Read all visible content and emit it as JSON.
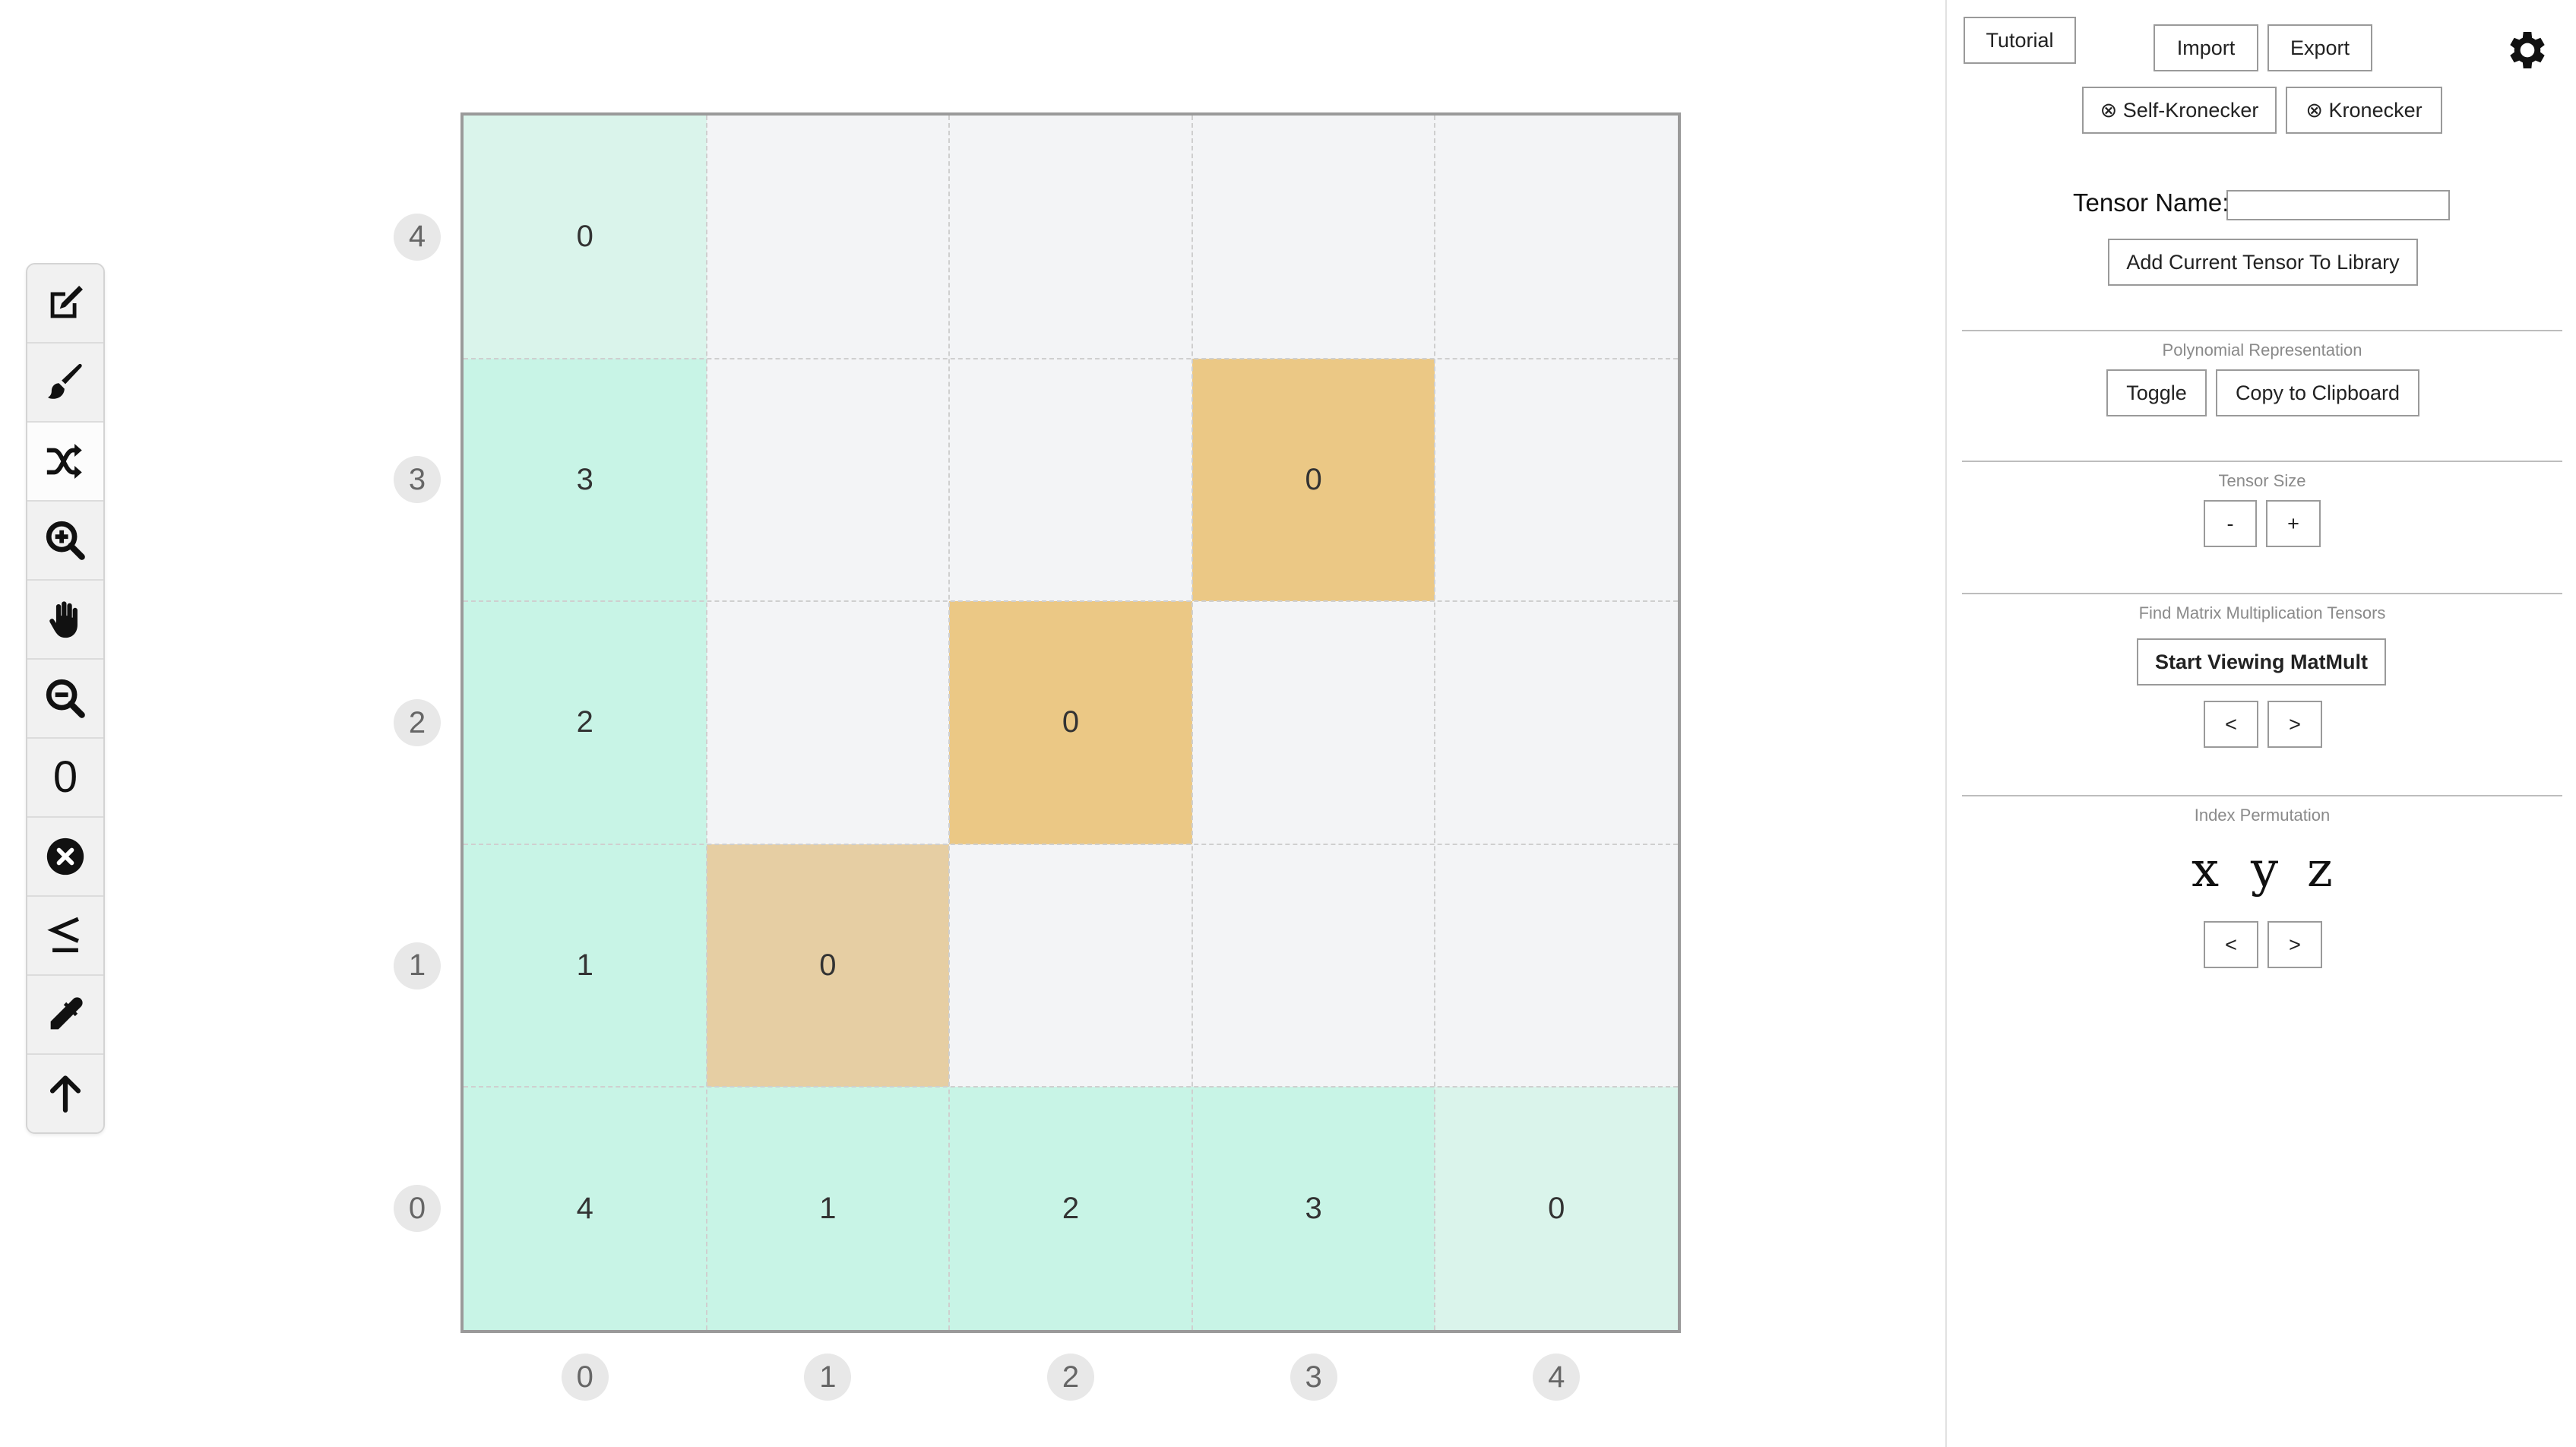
{
  "toolbar": {
    "tools": [
      {
        "name": "edit-icon",
        "active": false
      },
      {
        "name": "brush-icon",
        "active": false
      },
      {
        "name": "shuffle-icon",
        "active": true
      },
      {
        "name": "zoom-in-icon",
        "active": false
      },
      {
        "name": "hand-icon",
        "active": false
      },
      {
        "name": "zoom-out-icon",
        "active": false
      },
      {
        "name": "zero-icon",
        "label": "0",
        "active": false
      },
      {
        "name": "clear-icon",
        "active": false
      },
      {
        "name": "less-equal-icon",
        "label": "≤",
        "active": false
      },
      {
        "name": "eyedropper-icon",
        "active": false
      },
      {
        "name": "arrow-up-icon",
        "active": false
      }
    ]
  },
  "grid": {
    "size": 5,
    "row_axis": [
      "4",
      "3",
      "2",
      "1",
      "0"
    ],
    "col_axis": [
      "0",
      "1",
      "2",
      "3",
      "4"
    ],
    "cells": [
      [
        {
          "v": "0",
          "t": "corner"
        },
        {
          "v": "",
          "t": "empty"
        },
        {
          "v": "",
          "t": "empty"
        },
        {
          "v": "",
          "t": "empty"
        },
        {
          "v": "",
          "t": "empty"
        }
      ],
      [
        {
          "v": "3",
          "t": "label"
        },
        {
          "v": "",
          "t": "empty"
        },
        {
          "v": "",
          "t": "empty"
        },
        {
          "v": "0",
          "t": "gold"
        },
        {
          "v": "",
          "t": "empty"
        }
      ],
      [
        {
          "v": "2",
          "t": "label"
        },
        {
          "v": "",
          "t": "empty"
        },
        {
          "v": "0",
          "t": "gold"
        },
        {
          "v": "",
          "t": "empty"
        },
        {
          "v": "",
          "t": "empty"
        }
      ],
      [
        {
          "v": "1",
          "t": "label"
        },
        {
          "v": "0",
          "t": "tan"
        },
        {
          "v": "",
          "t": "empty"
        },
        {
          "v": "",
          "t": "empty"
        },
        {
          "v": "",
          "t": "empty"
        }
      ],
      [
        {
          "v": "4",
          "t": "label"
        },
        {
          "v": "1",
          "t": "label"
        },
        {
          "v": "2",
          "t": "label"
        },
        {
          "v": "3",
          "t": "label"
        },
        {
          "v": "0",
          "t": "corner"
        }
      ]
    ],
    "colors": {
      "empty": "#f3f4f6",
      "label": "#c8f4e6",
      "corner": "#daf4eb",
      "gold": "#ebc885",
      "tan": "#e6cea3"
    }
  },
  "panel": {
    "tutorial": "Tutorial",
    "import": "Import",
    "export": "Export",
    "self_kronecker": "⊗ Self-Kronecker",
    "kronecker": "⊗ Kronecker",
    "tensor_name_label": "Tensor Name:",
    "tensor_name_value": "",
    "add_to_library": "Add Current Tensor To Library",
    "poly_title": "Polynomial Representation",
    "toggle": "Toggle",
    "copy_clipboard": "Copy to Clipboard",
    "size_title": "Tensor Size",
    "size_minus": "-",
    "size_plus": "+",
    "matmult_title": "Find Matrix Multiplication Tensors",
    "start_matmult": "Start Viewing MatMult",
    "prev": "<",
    "next": ">",
    "perm_title": "Index Permutation",
    "perm_letters": [
      "x",
      "y",
      "z"
    ]
  }
}
